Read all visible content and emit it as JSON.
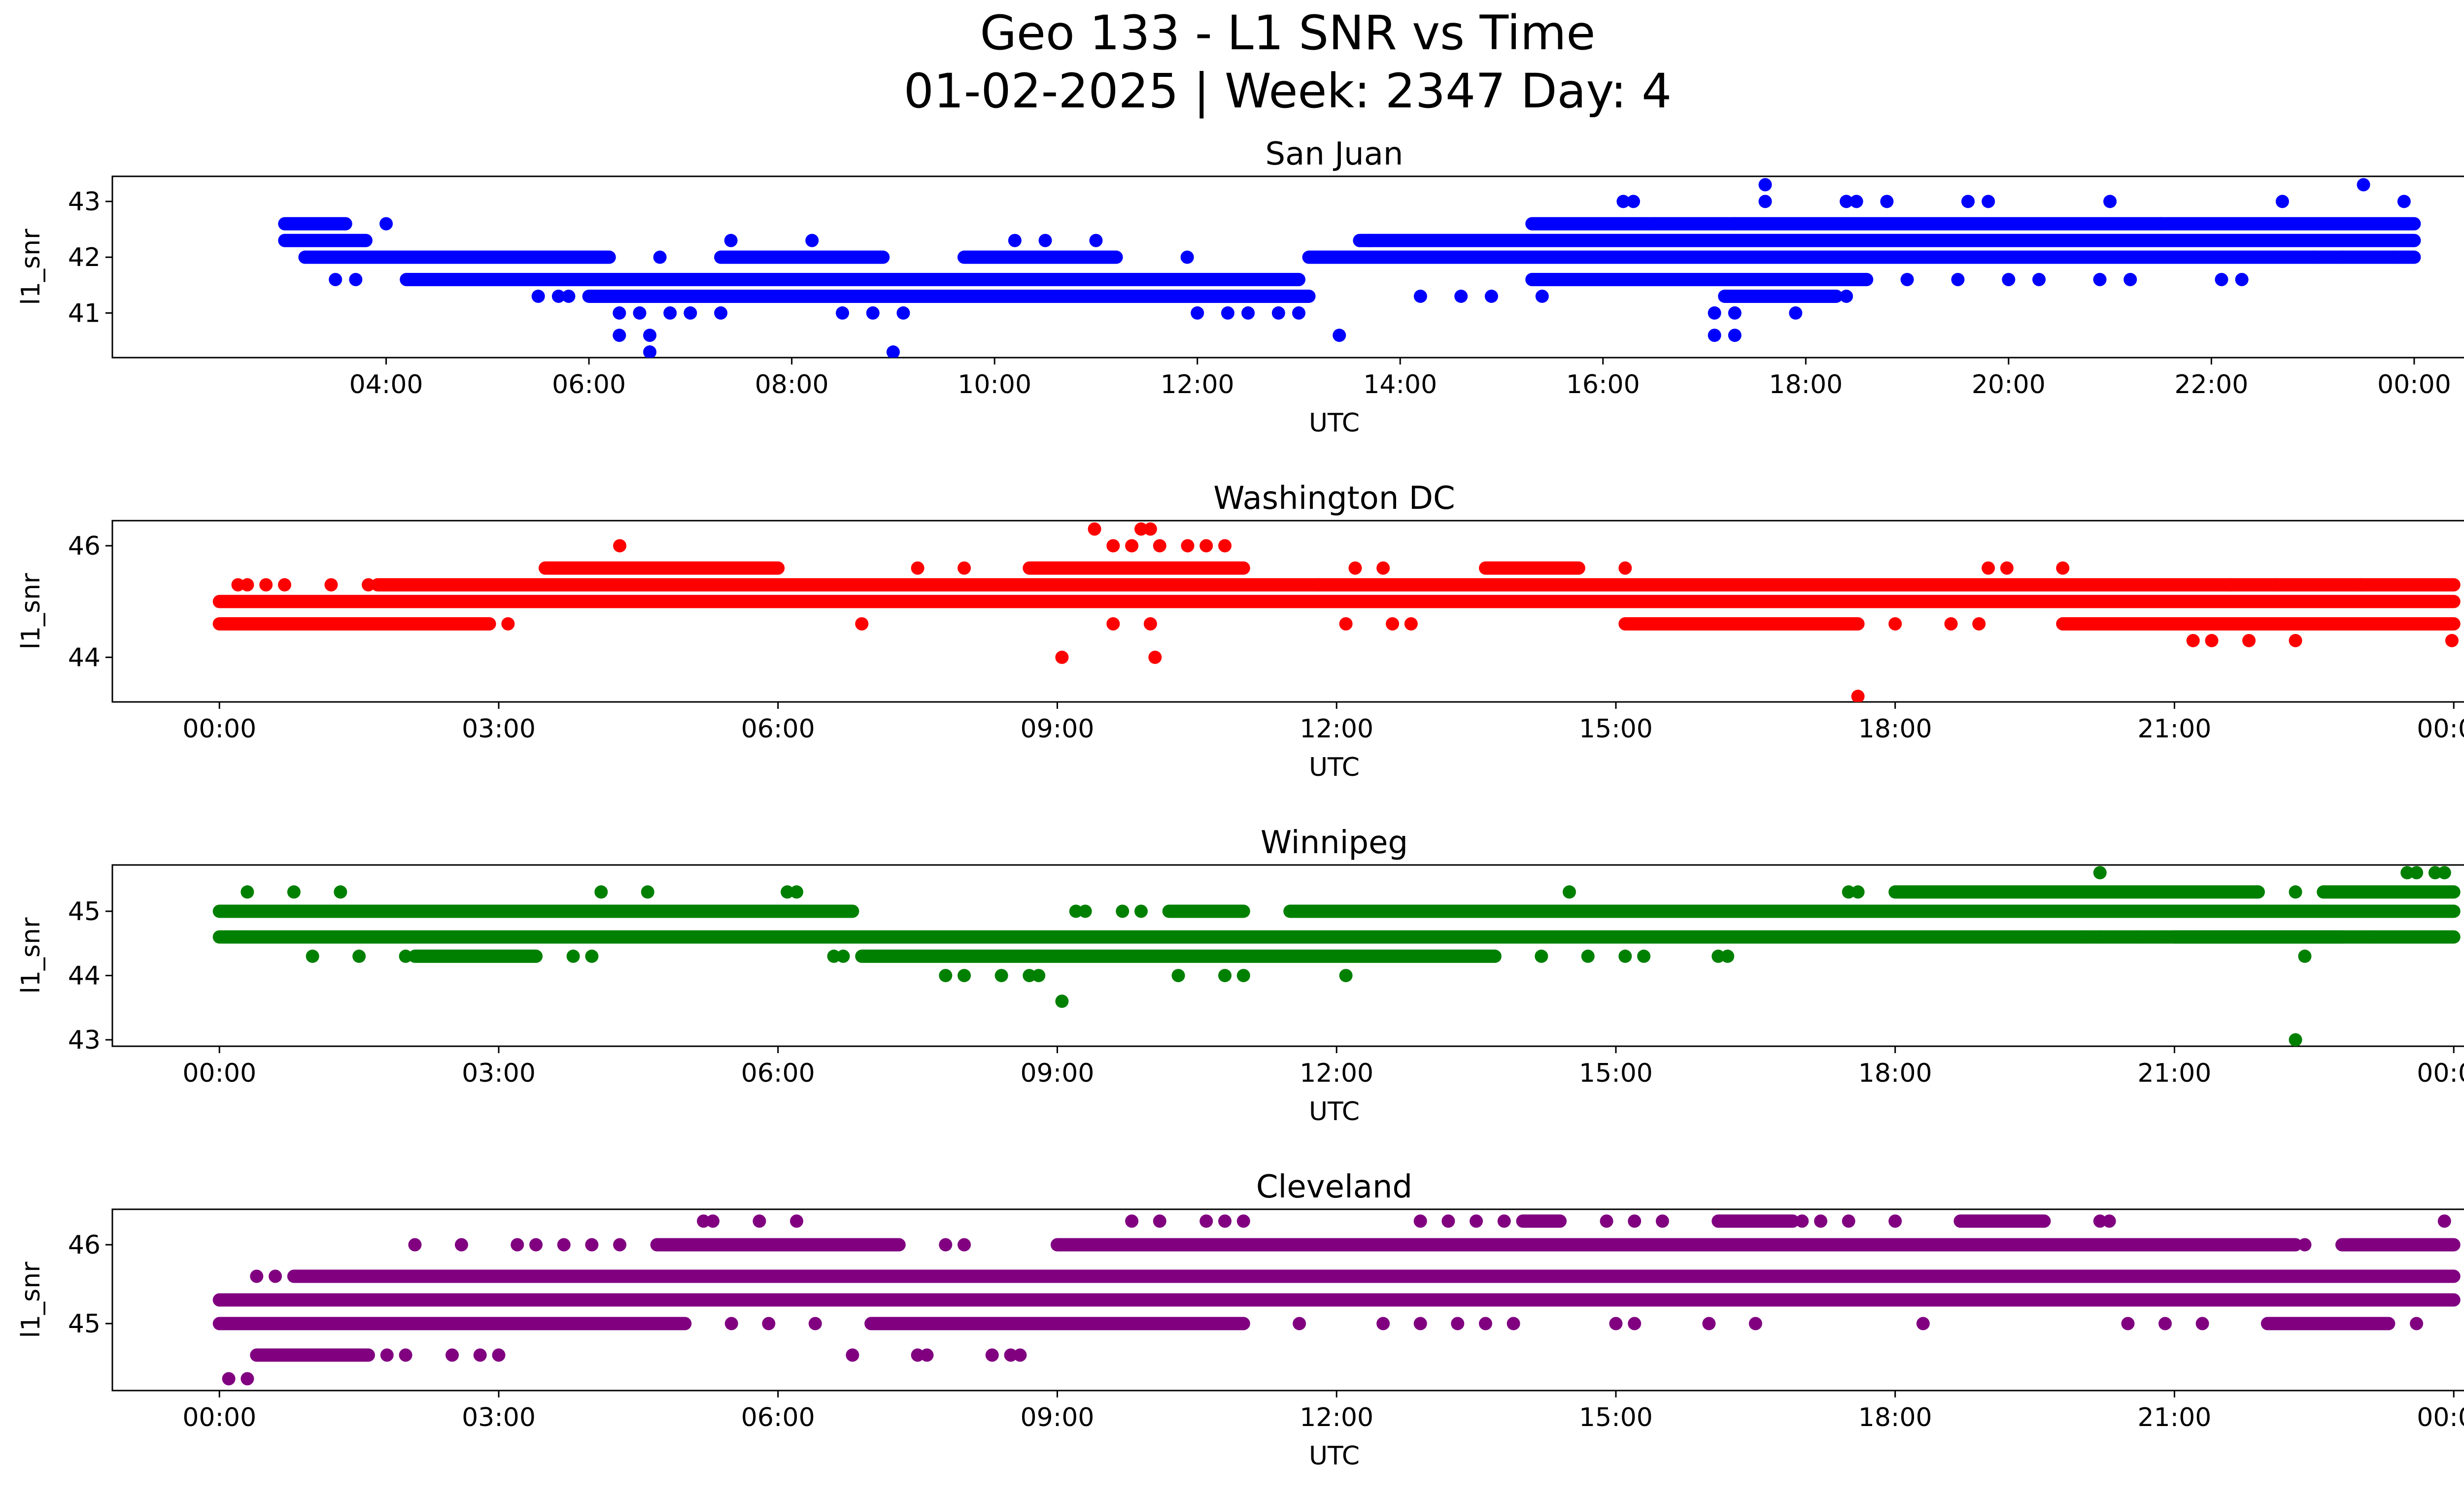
{
  "figure": {
    "title_line1": "Geo 133 - L1 SNR vs Time",
    "title_line2": "01-02-2025 | Week: 2347 Day: 4"
  },
  "chart_data": [
    {
      "type": "scatter",
      "title": "San Juan",
      "xlabel": "UTC",
      "ylabel": "l1_snr",
      "color": "#0000ff",
      "xlim_hours": [
        1.3,
        25.4
      ],
      "ylim": [
        40.2,
        43.45
      ],
      "yticks": [
        41,
        42,
        43
      ],
      "ytick_labels": [
        "41",
        "42",
        "43"
      ],
      "xticks_hours": [
        4,
        6,
        8,
        10,
        12,
        14,
        16,
        18,
        20,
        22,
        24
      ],
      "xtick_labels": [
        "04:00",
        "06:00",
        "08:00",
        "10:00",
        "12:00",
        "14:00",
        "16:00",
        "18:00",
        "20:00",
        "22:00",
        "00:00"
      ],
      "levels": [
        {
          "y": 42.6,
          "start": 3.0,
          "end": 3.6
        },
        {
          "y": 42.3,
          "start": 3.0,
          "end": 3.8
        },
        {
          "y": 42.3,
          "start": 13.6,
          "end": 24.0
        },
        {
          "y": 42.0,
          "start": 3.2,
          "end": 6.2
        },
        {
          "y": 42.0,
          "start": 7.3,
          "end": 8.9
        },
        {
          "y": 42.0,
          "start": 9.7,
          "end": 11.2
        },
        {
          "y": 42.0,
          "start": 13.1,
          "end": 24.0
        },
        {
          "y": 41.6,
          "start": 4.2,
          "end": 13.0
        },
        {
          "y": 41.3,
          "start": 6.0,
          "end": 13.1
        },
        {
          "y": 42.6,
          "start": 15.3,
          "end": 24.0
        },
        {
          "y": 41.6,
          "start": 15.3,
          "end": 18.6
        },
        {
          "y": 41.3,
          "start": 17.2,
          "end": 18.3
        }
      ],
      "points": [
        [
          3.5,
          41.6
        ],
        [
          3.7,
          41.6
        ],
        [
          4.0,
          42.6
        ],
        [
          5.5,
          41.3
        ],
        [
          5.7,
          41.3
        ],
        [
          5.8,
          41.3
        ],
        [
          6.0,
          41.6
        ],
        [
          6.2,
          41.3
        ],
        [
          6.3,
          41.0
        ],
        [
          6.5,
          41.0
        ],
        [
          6.6,
          41.3
        ],
        [
          6.7,
          42.0
        ],
        [
          6.8,
          41.0
        ],
        [
          7.0,
          41.0
        ],
        [
          7.3,
          41.0
        ],
        [
          7.4,
          42.3
        ],
        [
          6.3,
          40.6
        ],
        [
          6.6,
          40.6
        ],
        [
          6.6,
          40.3
        ],
        [
          8.2,
          42.3
        ],
        [
          8.5,
          41.0
        ],
        [
          8.8,
          41.0
        ],
        [
          9.0,
          40.3
        ],
        [
          9.1,
          41.0
        ],
        [
          10.2,
          42.3
        ],
        [
          10.5,
          42.3
        ],
        [
          10.7,
          41.3
        ],
        [
          10.9,
          41.3
        ],
        [
          11.0,
          42.3
        ],
        [
          11.2,
          41.3
        ],
        [
          11.4,
          41.3
        ],
        [
          11.9,
          42.0
        ],
        [
          12.0,
          41.0
        ],
        [
          12.3,
          41.0
        ],
        [
          12.5,
          41.0
        ],
        [
          12.8,
          41.0
        ],
        [
          13.0,
          41.0
        ],
        [
          13.4,
          40.6
        ],
        [
          13.7,
          42.3
        ],
        [
          14.2,
          41.3
        ],
        [
          14.6,
          41.3
        ],
        [
          14.9,
          41.3
        ],
        [
          15.4,
          41.3
        ],
        [
          15.8,
          41.6
        ],
        [
          16.2,
          43.0
        ],
        [
          16.3,
          43.0
        ],
        [
          16.3,
          41.6
        ],
        [
          16.9,
          41.6
        ],
        [
          17.1,
          40.6
        ],
        [
          17.3,
          40.6
        ],
        [
          17.1,
          41.0
        ],
        [
          17.3,
          41.0
        ],
        [
          17.6,
          43.3
        ],
        [
          17.6,
          43.0
        ],
        [
          17.9,
          41.0
        ],
        [
          18.0,
          41.3
        ],
        [
          18.4,
          43.0
        ],
        [
          18.5,
          43.0
        ],
        [
          18.8,
          43.0
        ],
        [
          18.4,
          41.3
        ],
        [
          19.0,
          41.6
        ],
        [
          19.5,
          41.6
        ],
        [
          19.6,
          43.0
        ],
        [
          19.8,
          43.0
        ],
        [
          20.0,
          41.6
        ],
        [
          20.3,
          41.6
        ],
        [
          20.9,
          41.6
        ],
        [
          21.0,
          43.0
        ],
        [
          21.2,
          41.6
        ],
        [
          22.1,
          41.6
        ],
        [
          22.3,
          41.6
        ],
        [
          22.7,
          43.0
        ],
        [
          23.0,
          42.0
        ],
        [
          23.3,
          42.0
        ],
        [
          23.5,
          43.3
        ],
        [
          23.8,
          42.0
        ],
        [
          23.9,
          43.0
        ],
        [
          17.3,
          42.6
        ],
        [
          16.5,
          42.6
        ],
        [
          21.5,
          42.6
        ]
      ]
    },
    {
      "type": "scatter",
      "title": "Washington DC",
      "xlabel": "UTC",
      "ylabel": "l1_snr",
      "color": "#ff0000",
      "xlim_hours": [
        -1.15,
        25.1
      ],
      "ylim": [
        43.2,
        46.45
      ],
      "yticks": [
        44,
        46
      ],
      "ytick_labels": [
        "44",
        "46"
      ],
      "xticks_hours": [
        0,
        3,
        6,
        9,
        12,
        15,
        18,
        21,
        24
      ],
      "xtick_labels": [
        "00:00",
        "03:00",
        "06:00",
        "09:00",
        "12:00",
        "15:00",
        "18:00",
        "21:00",
        "00:00"
      ],
      "levels": [
        {
          "y": 45.0,
          "start": 0.0,
          "end": 24.0
        },
        {
          "y": 44.6,
          "start": 0.0,
          "end": 2.9
        },
        {
          "y": 45.3,
          "start": 1.7,
          "end": 11.8
        },
        {
          "y": 45.3,
          "start": 11.8,
          "end": 24.0
        },
        {
          "y": 45.6,
          "start": 3.5,
          "end": 6.0
        },
        {
          "y": 45.6,
          "start": 8.7,
          "end": 11.0
        },
        {
          "y": 45.6,
          "start": 13.6,
          "end": 14.6
        },
        {
          "y": 44.6,
          "start": 15.1,
          "end": 17.6
        },
        {
          "y": 44.6,
          "start": 19.8,
          "end": 24.0
        }
      ],
      "points": [
        [
          0.2,
          45.3
        ],
        [
          0.3,
          45.3
        ],
        [
          0.7,
          45.3
        ],
        [
          0.5,
          45.3
        ],
        [
          1.2,
          45.3
        ],
        [
          1.6,
          45.3
        ],
        [
          3.1,
          44.6
        ],
        [
          4.3,
          46.0
        ],
        [
          6.9,
          44.6
        ],
        [
          9.05,
          44.0
        ],
        [
          9.4,
          46.3
        ],
        [
          9.9,
          46.3
        ],
        [
          10.0,
          46.3
        ],
        [
          10.05,
          44.0
        ],
        [
          10.4,
          46.0
        ],
        [
          10.6,
          46.0
        ],
        [
          10.8,
          46.0
        ],
        [
          9.6,
          46.0
        ],
        [
          9.8,
          46.0
        ],
        [
          10.1,
          46.0
        ],
        [
          9.6,
          44.6
        ],
        [
          10.0,
          44.6
        ],
        [
          12.2,
          45.6
        ],
        [
          12.1,
          44.6
        ],
        [
          12.6,
          44.6
        ],
        [
          12.8,
          44.6
        ],
        [
          15.1,
          45.6
        ],
        [
          17.6,
          43.3
        ],
        [
          18.0,
          44.6
        ],
        [
          18.6,
          44.6
        ],
        [
          18.9,
          44.6
        ],
        [
          19.0,
          45.6
        ],
        [
          19.2,
          45.6
        ],
        [
          19.8,
          45.6
        ],
        [
          21.2,
          44.3
        ],
        [
          21.4,
          44.3
        ],
        [
          21.6,
          45.3
        ],
        [
          21.8,
          44.3
        ],
        [
          22.1,
          45.3
        ],
        [
          22.3,
          44.3
        ],
        [
          23.0,
          45.3
        ],
        [
          23.98,
          44.3
        ],
        [
          7.5,
          45.6
        ],
        [
          8.0,
          45.6
        ],
        [
          12.5,
          45.6
        ]
      ]
    },
    {
      "type": "scatter",
      "title": "Winnipeg",
      "xlabel": "UTC",
      "ylabel": "l1_snr",
      "color": "#008000",
      "xlim_hours": [
        -1.15,
        25.1
      ],
      "ylim": [
        42.9,
        45.72
      ],
      "yticks": [
        43,
        44,
        45
      ],
      "ytick_labels": [
        "43",
        "44",
        "45"
      ],
      "xticks_hours": [
        0,
        3,
        6,
        9,
        12,
        15,
        18,
        21,
        24
      ],
      "xtick_labels": [
        "00:00",
        "03:00",
        "06:00",
        "09:00",
        "12:00",
        "15:00",
        "18:00",
        "21:00",
        "00:00"
      ],
      "levels": [
        {
          "y": 45.0,
          "start": 0.0,
          "end": 6.8
        },
        {
          "y": 45.0,
          "start": 14.6,
          "end": 24.0
        },
        {
          "y": 45.0,
          "start": 10.2,
          "end": 11.0
        },
        {
          "y": 45.0,
          "start": 11.5,
          "end": 14.6
        },
        {
          "y": 44.6,
          "start": 0.0,
          "end": 24.0
        },
        {
          "y": 44.3,
          "start": 2.1,
          "end": 3.4
        },
        {
          "y": 44.3,
          "start": 6.9,
          "end": 13.7
        },
        {
          "y": 45.3,
          "start": 18.0,
          "end": 21.9
        },
        {
          "y": 45.3,
          "start": 22.6,
          "end": 24.0
        },
        {
          "y": 44.6,
          "start": 21.0,
          "end": 22.8
        }
      ],
      "points": [
        [
          0.3,
          45.3
        ],
        [
          0.8,
          45.3
        ],
        [
          1.3,
          45.3
        ],
        [
          1.0,
          44.3
        ],
        [
          1.5,
          44.3
        ],
        [
          2.0,
          44.3
        ],
        [
          2.7,
          45.0
        ],
        [
          3.0,
          45.0
        ],
        [
          3.8,
          44.3
        ],
        [
          4.0,
          44.3
        ],
        [
          4.1,
          45.3
        ],
        [
          4.6,
          45.3
        ],
        [
          6.1,
          45.3
        ],
        [
          6.2,
          45.3
        ],
        [
          6.6,
          44.3
        ],
        [
          6.7,
          44.3
        ],
        [
          7.8,
          44.0
        ],
        [
          8.0,
          44.0
        ],
        [
          8.4,
          44.0
        ],
        [
          8.7,
          44.0
        ],
        [
          8.8,
          44.0
        ],
        [
          9.05,
          43.6
        ],
        [
          9.2,
          45.0
        ],
        [
          9.3,
          45.0
        ],
        [
          9.7,
          45.0
        ],
        [
          9.9,
          45.0
        ],
        [
          10.3,
          44.0
        ],
        [
          10.8,
          44.0
        ],
        [
          11.0,
          44.0
        ],
        [
          12.1,
          44.0
        ],
        [
          14.2,
          44.3
        ],
        [
          14.5,
          45.3
        ],
        [
          14.7,
          44.3
        ],
        [
          15.1,
          44.3
        ],
        [
          15.3,
          44.3
        ],
        [
          16.1,
          44.3
        ],
        [
          16.2,
          44.3
        ],
        [
          17.5,
          45.3
        ],
        [
          17.6,
          45.3
        ],
        [
          20.0,
          44.6
        ],
        [
          20.2,
          44.6
        ],
        [
          20.2,
          45.6
        ],
        [
          20.6,
          44.6
        ],
        [
          20.9,
          44.6
        ],
        [
          21.0,
          44.6
        ],
        [
          22.3,
          45.3
        ],
        [
          22.4,
          44.3
        ],
        [
          22.3,
          43.0
        ],
        [
          22.8,
          44.6
        ],
        [
          23.1,
          44.6
        ],
        [
          23.5,
          45.6
        ],
        [
          23.6,
          45.6
        ],
        [
          23.8,
          45.6
        ],
        [
          23.9,
          45.6
        ]
      ]
    },
    {
      "type": "scatter",
      "title": "Cleveland",
      "xlabel": "UTC",
      "ylabel": "l1_snr",
      "color": "#800080",
      "xlim_hours": [
        -1.15,
        25.1
      ],
      "ylim": [
        44.15,
        46.45
      ],
      "yticks": [
        45,
        46
      ],
      "ytick_labels": [
        "45",
        "46"
      ],
      "xticks_hours": [
        0,
        3,
        6,
        9,
        12,
        15,
        18,
        21,
        24
      ],
      "xtick_labels": [
        "00:00",
        "03:00",
        "06:00",
        "09:00",
        "12:00",
        "15:00",
        "18:00",
        "21:00",
        "00:00"
      ],
      "levels": [
        {
          "y": 45.6,
          "start": 0.8,
          "end": 24.0
        },
        {
          "y": 45.3,
          "start": 0.0,
          "end": 24.0
        },
        {
          "y": 45.0,
          "start": 0.0,
          "end": 5.0
        },
        {
          "y": 45.0,
          "start": 7.0,
          "end": 11.0
        },
        {
          "y": 45.0,
          "start": 22.0,
          "end": 23.3
        },
        {
          "y": 44.6,
          "start": 0.4,
          "end": 1.6
        },
        {
          "y": 46.0,
          "start": 4.7,
          "end": 7.3
        },
        {
          "y": 46.0,
          "start": 9.0,
          "end": 22.3
        },
        {
          "y": 46.0,
          "start": 22.8,
          "end": 24.0
        },
        {
          "y": 46.3,
          "start": 14.0,
          "end": 14.4
        },
        {
          "y": 46.3,
          "start": 16.1,
          "end": 16.9
        },
        {
          "y": 46.3,
          "start": 18.7,
          "end": 19.6
        }
      ],
      "points": [
        [
          0.1,
          44.3
        ],
        [
          0.3,
          44.3
        ],
        [
          0.4,
          45.6
        ],
        [
          0.6,
          45.6
        ],
        [
          1.8,
          44.6
        ],
        [
          2.0,
          44.6
        ],
        [
          2.1,
          46.0
        ],
        [
          2.5,
          44.6
        ],
        [
          2.6,
          46.0
        ],
        [
          2.8,
          44.6
        ],
        [
          3.0,
          44.6
        ],
        [
          3.2,
          46.0
        ],
        [
          3.4,
          46.0
        ],
        [
          3.7,
          46.0
        ],
        [
          4.0,
          46.0
        ],
        [
          4.3,
          46.0
        ],
        [
          5.2,
          46.3
        ],
        [
          5.3,
          46.3
        ],
        [
          5.5,
          45.0
        ],
        [
          5.8,
          46.3
        ],
        [
          5.9,
          45.0
        ],
        [
          6.2,
          46.3
        ],
        [
          6.4,
          45.0
        ],
        [
          6.8,
          44.6
        ],
        [
          7.5,
          44.6
        ],
        [
          7.6,
          44.6
        ],
        [
          7.8,
          46.0
        ],
        [
          8.0,
          46.0
        ],
        [
          8.3,
          44.6
        ],
        [
          8.5,
          44.6
        ],
        [
          8.6,
          44.6
        ],
        [
          9.8,
          46.3
        ],
        [
          10.1,
          46.3
        ],
        [
          10.6,
          46.3
        ],
        [
          10.8,
          46.3
        ],
        [
          11.0,
          46.3
        ],
        [
          11.6,
          45.0
        ],
        [
          12.5,
          45.0
        ],
        [
          12.9,
          46.3
        ],
        [
          13.2,
          46.3
        ],
        [
          13.5,
          46.3
        ],
        [
          13.8,
          46.3
        ],
        [
          12.9,
          45.0
        ],
        [
          13.3,
          45.0
        ],
        [
          13.6,
          45.0
        ],
        [
          13.9,
          45.0
        ],
        [
          14.9,
          46.3
        ],
        [
          15.2,
          46.3
        ],
        [
          15.5,
          46.3
        ],
        [
          15.0,
          45.0
        ],
        [
          15.2,
          45.0
        ],
        [
          16.0,
          45.0
        ],
        [
          16.5,
          45.0
        ],
        [
          17.0,
          46.3
        ],
        [
          17.2,
          46.3
        ],
        [
          17.5,
          46.3
        ],
        [
          18.0,
          46.3
        ],
        [
          18.3,
          45.0
        ],
        [
          20.3,
          46.3
        ],
        [
          20.5,
          45.0
        ],
        [
          20.9,
          45.0
        ],
        [
          21.3,
          45.0
        ],
        [
          23.6,
          45.0
        ],
        [
          23.9,
          46.3
        ],
        [
          22.4,
          46.0
        ],
        [
          20.2,
          46.3
        ]
      ]
    }
  ]
}
